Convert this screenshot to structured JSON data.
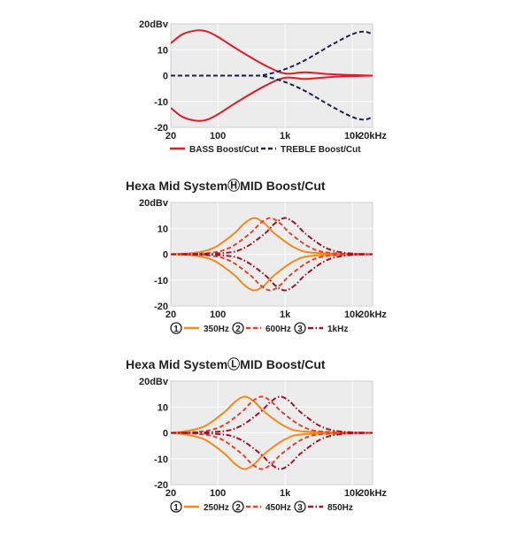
{
  "chart_data": [
    {
      "type": "line",
      "title": "",
      "xscale": "log",
      "xlim": [
        20,
        20000
      ],
      "ylim": [
        -20,
        20
      ],
      "xticks": [
        {
          "v": 20,
          "label": "20"
        },
        {
          "v": 100,
          "label": "100"
        },
        {
          "v": 1000,
          "label": "1k"
        },
        {
          "v": 10000,
          "label": "10k"
        },
        {
          "v": 20000,
          "label": "20kHz"
        }
      ],
      "yticks": [
        {
          "v": 20,
          "label": "20dBv"
        },
        {
          "v": 10,
          "label": "10"
        },
        {
          "v": 0,
          "label": "0"
        },
        {
          "v": -10,
          "label": "-10"
        },
        {
          "v": -20,
          "label": "-20"
        }
      ],
      "grid": true,
      "legend_position": "bottom",
      "series": [
        {
          "name": "BASS Boost/Cut",
          "prefix": "",
          "color": "#dd1f26",
          "style": "solid",
          "mirrored_cut": true,
          "x": [
            20,
            30,
            50,
            70,
            100,
            200,
            500,
            1000,
            2000,
            5000,
            20000
          ],
          "y": [
            12.5,
            16,
            17.5,
            17,
            15,
            10,
            4,
            0.8,
            1.3,
            0.5,
            0
          ]
        },
        {
          "name": "TREBLE Boost/Cut",
          "prefix": "",
          "color": "#1b1f5c",
          "style": "dashed",
          "mirrored_cut": true,
          "x": [
            20,
            100,
            300,
            500,
            1000,
            2000,
            5000,
            10000,
            15000,
            20000
          ],
          "y": [
            0,
            0,
            0,
            0.3,
            2.5,
            6,
            12,
            16,
            17,
            16
          ]
        }
      ]
    },
    {
      "type": "line",
      "title": "Hexa Mid SystemⒽMID Boost/Cut",
      "xscale": "log",
      "xlim": [
        20,
        20000
      ],
      "ylim": [
        -20,
        20
      ],
      "xticks": [
        {
          "v": 20,
          "label": "20"
        },
        {
          "v": 100,
          "label": "100"
        },
        {
          "v": 1000,
          "label": "1k"
        },
        {
          "v": 10000,
          "label": "10k"
        },
        {
          "v": 20000,
          "label": "20kHz"
        }
      ],
      "yticks": [
        {
          "v": 20,
          "label": "20dBv"
        },
        {
          "v": 10,
          "label": "10"
        },
        {
          "v": 0,
          "label": "0"
        },
        {
          "v": -10,
          "label": "-10"
        },
        {
          "v": -20,
          "label": "-20"
        }
      ],
      "grid": true,
      "legend_position": "bottom",
      "series": [
        {
          "name": "350Hz",
          "prefix": "1",
          "color": "#f28a1c",
          "style": "solid",
          "mirrored_cut": true,
          "x": [
            20,
            44,
            88,
            175,
            250,
            350,
            490,
            700,
            1400,
            2800,
            20000
          ],
          "y": [
            0,
            0.5,
            2.5,
            8,
            12,
            14,
            12,
            8,
            2.5,
            0.5,
            0
          ]
        },
        {
          "name": "600Hz",
          "prefix": "2",
          "color": "#e2432b",
          "style": "dashed",
          "mirrored_cut": true,
          "x": [
            20,
            75,
            150,
            300,
            430,
            600,
            840,
            1200,
            2400,
            4800,
            20000
          ],
          "y": [
            0,
            0.5,
            2.5,
            8,
            12,
            14,
            12,
            8,
            2.5,
            0.5,
            0
          ]
        },
        {
          "name": "1kHz",
          "prefix": "3",
          "color": "#a3122a",
          "style": "dashdot",
          "mirrored_cut": true,
          "x": [
            20,
            125,
            250,
            500,
            710,
            1000,
            1400,
            2000,
            4000,
            8000,
            20000
          ],
          "y": [
            0,
            0.5,
            2.5,
            8,
            12,
            14,
            12,
            8,
            2.5,
            0.5,
            0
          ]
        }
      ]
    },
    {
      "type": "line",
      "title": "Hexa Mid SystemⓁMID Boost/Cut",
      "xscale": "log",
      "xlim": [
        20,
        20000
      ],
      "ylim": [
        -20,
        20
      ],
      "xticks": [
        {
          "v": 20,
          "label": "20"
        },
        {
          "v": 100,
          "label": "100"
        },
        {
          "v": 1000,
          "label": "1k"
        },
        {
          "v": 10000,
          "label": "10k"
        },
        {
          "v": 20000,
          "label": "20kHz"
        }
      ],
      "yticks": [
        {
          "v": 20,
          "label": "20dBv"
        },
        {
          "v": 10,
          "label": "10"
        },
        {
          "v": 0,
          "label": "0"
        },
        {
          "v": -10,
          "label": "-10"
        },
        {
          "v": -20,
          "label": "-20"
        }
      ],
      "grid": true,
      "legend_position": "bottom",
      "series": [
        {
          "name": "250Hz",
          "prefix": "1",
          "color": "#f28a1c",
          "style": "solid",
          "mirrored_cut": true,
          "x": [
            20,
            31,
            63,
            125,
            180,
            250,
            350,
            500,
            1000,
            2000,
            20000
          ],
          "y": [
            0,
            0.5,
            2.5,
            8,
            12,
            14,
            12,
            8,
            2.5,
            0.5,
            0
          ]
        },
        {
          "name": "450Hz",
          "prefix": "2",
          "color": "#e2432b",
          "style": "dashed",
          "mirrored_cut": true,
          "x": [
            20,
            56,
            113,
            225,
            320,
            450,
            630,
            900,
            1800,
            3600,
            20000
          ],
          "y": [
            0,
            0.5,
            2.5,
            8,
            12,
            14,
            12,
            8,
            2.5,
            0.5,
            0
          ]
        },
        {
          "name": "850Hz",
          "prefix": "3",
          "color": "#a3122a",
          "style": "dashdot",
          "mirrored_cut": true,
          "x": [
            20,
            106,
            213,
            425,
            610,
            850,
            1190,
            1700,
            3400,
            6800,
            20000
          ],
          "y": [
            0,
            0.5,
            2.5,
            8,
            12,
            14,
            12,
            8,
            2.5,
            0.5,
            0
          ]
        }
      ]
    }
  ]
}
